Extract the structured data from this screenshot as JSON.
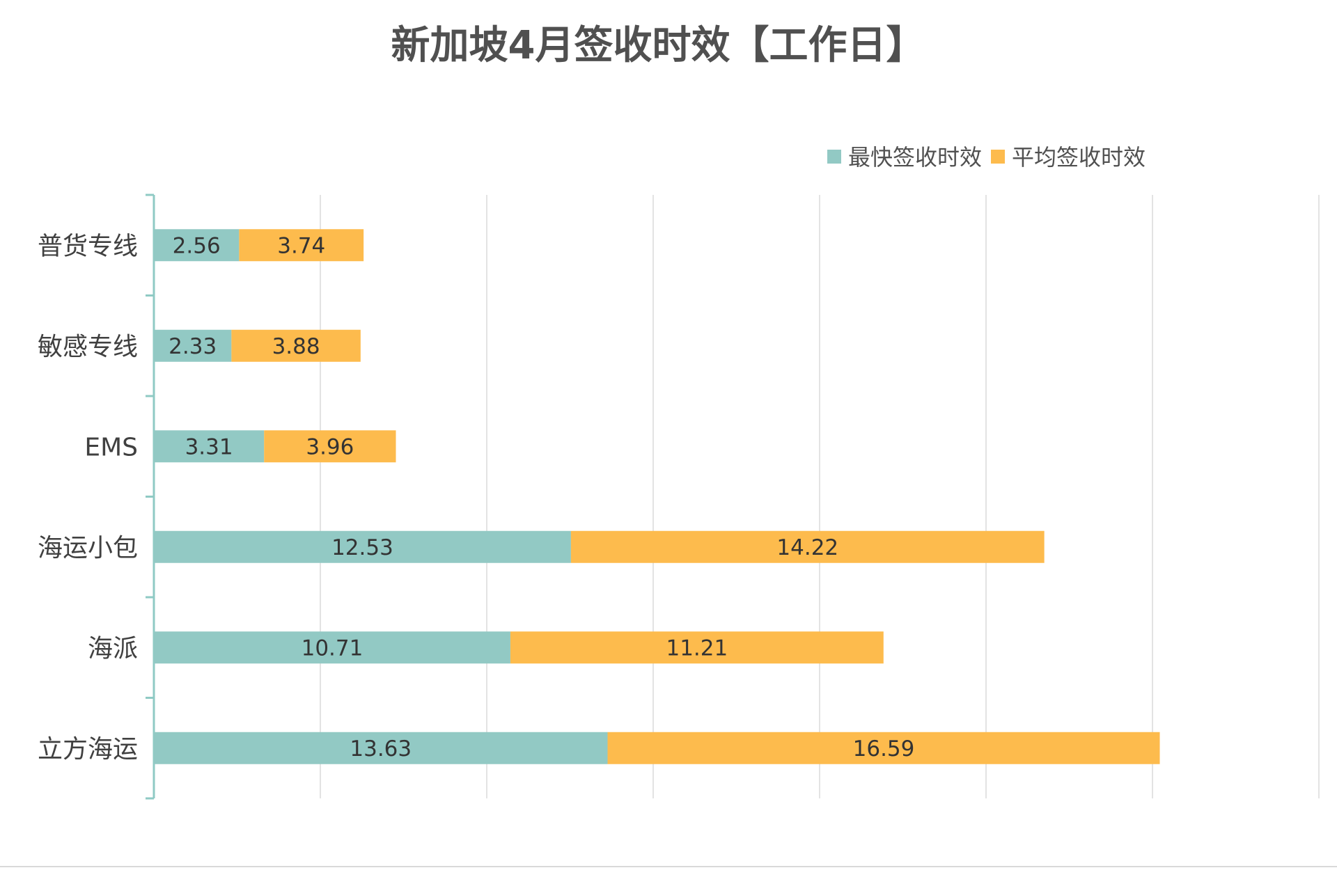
{
  "chart_data": {
    "type": "bar",
    "orientation": "horizontal",
    "stacked": true,
    "title": "新加坡4月签收时效【工作日】",
    "categories": [
      "普货专线",
      "敏感专线",
      "EMS",
      "海运小包",
      "海派",
      "立方海运"
    ],
    "series": [
      {
        "name": "最快签收时效",
        "color": "#92c9c4",
        "values": [
          2.56,
          2.33,
          3.31,
          12.53,
          10.71,
          13.63
        ]
      },
      {
        "name": "平均签收时效",
        "color": "#fdbb4d",
        "values": [
          3.74,
          3.88,
          3.96,
          14.22,
          11.21,
          16.59
        ]
      }
    ],
    "xlim": [
      0,
      35
    ],
    "x_gridline_step": 5,
    "grid": true,
    "legend_position": "top-right",
    "data_labels": true
  }
}
